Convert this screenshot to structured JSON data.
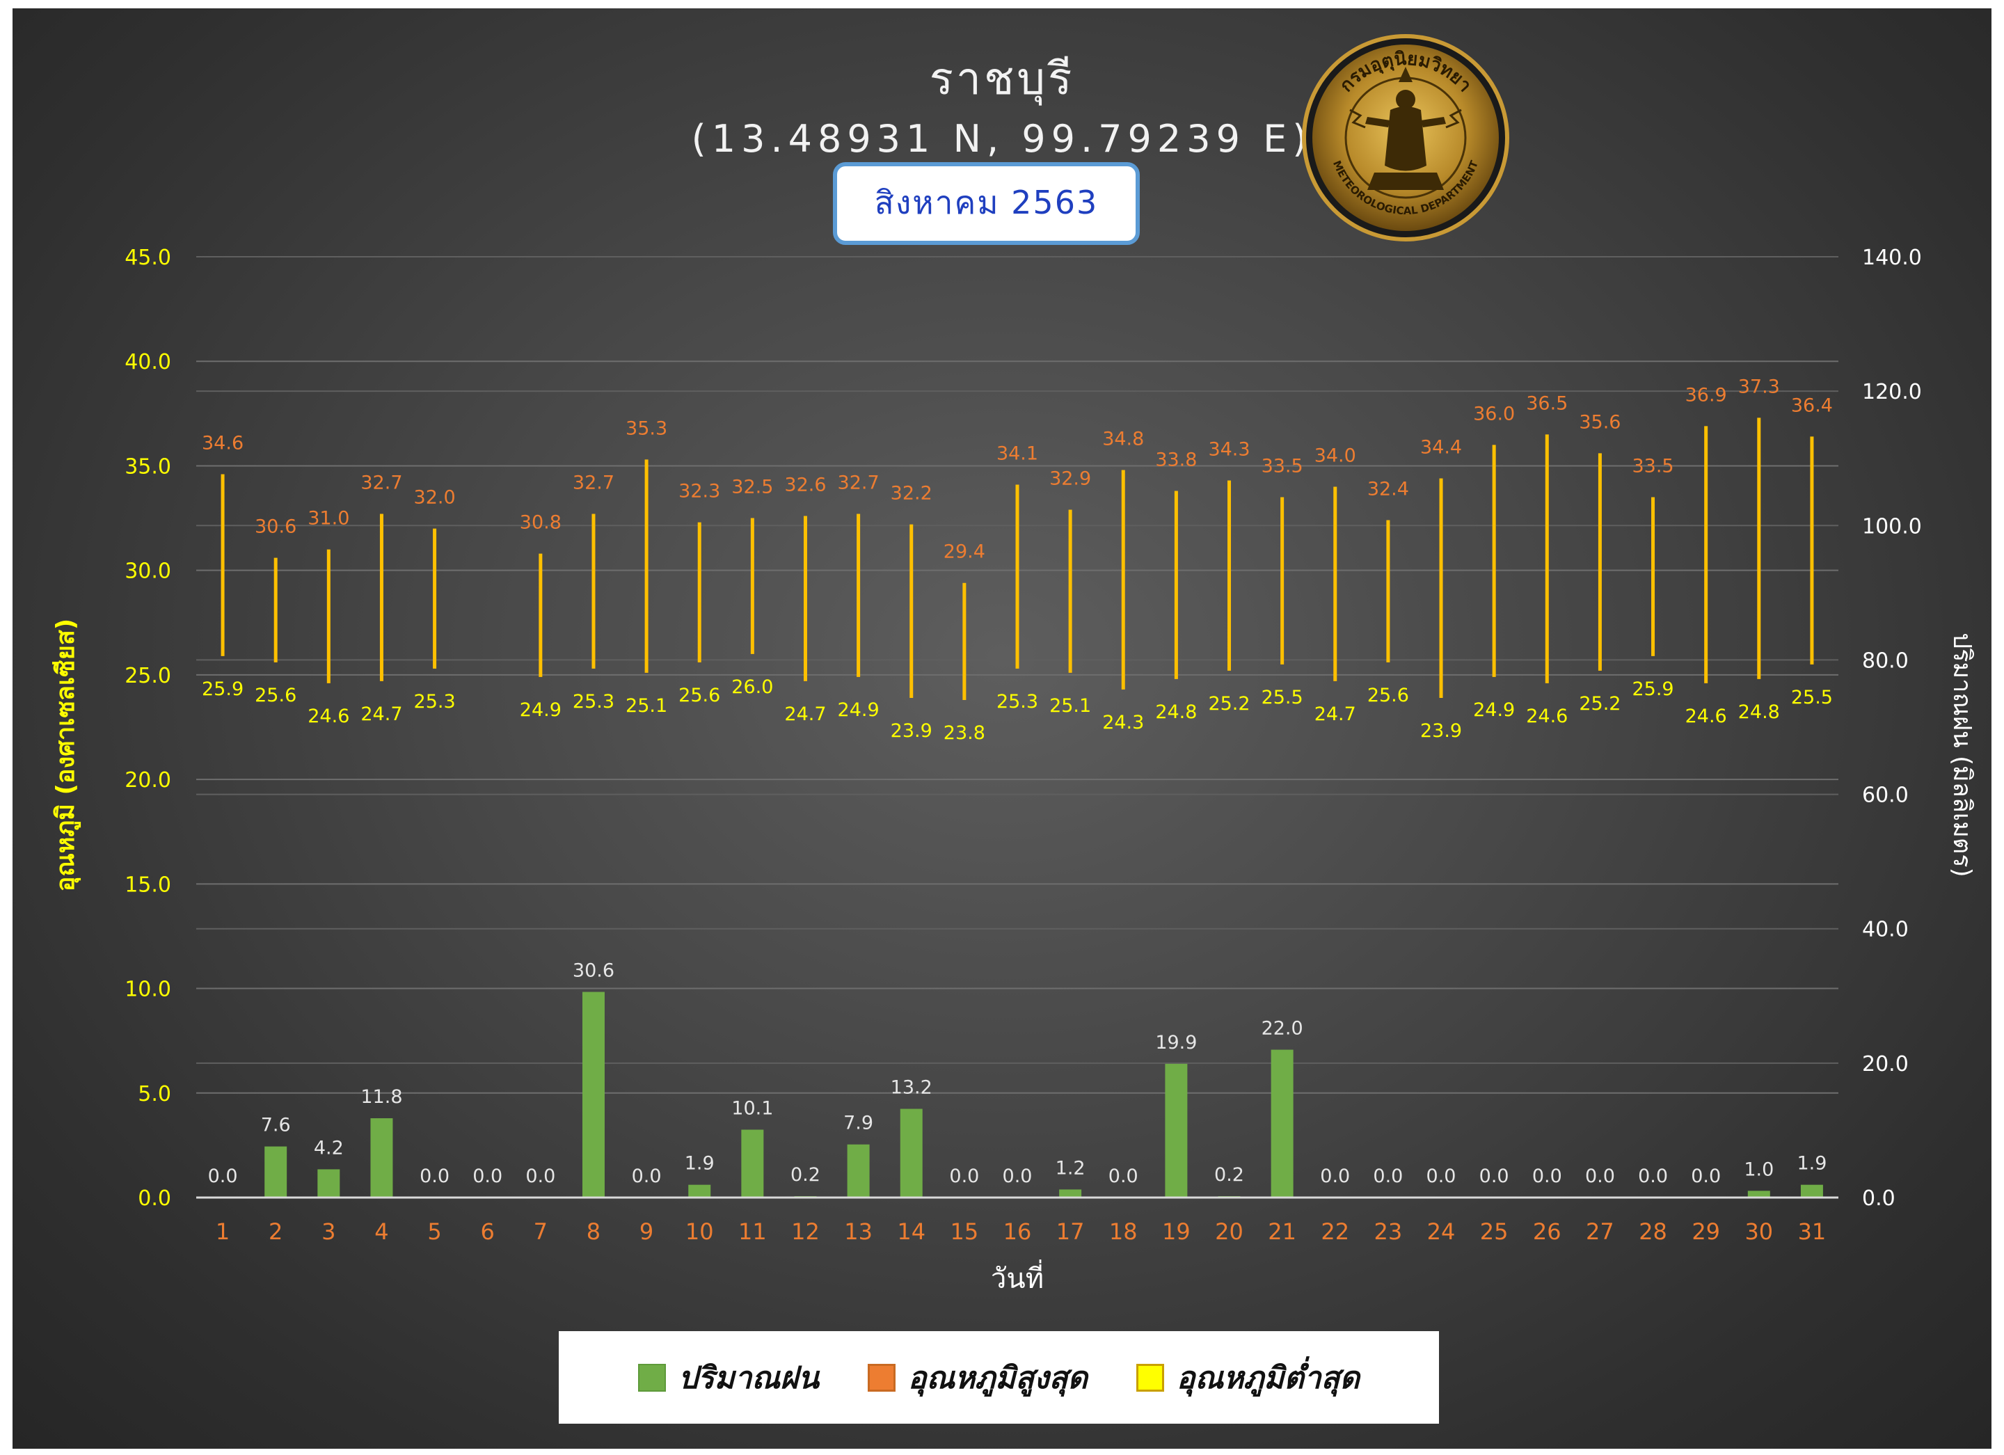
{
  "header": {
    "title": "ราชบุรี",
    "coords": "(13.48931 N, 99.79239 E)",
    "month": "สิงหาคม 2563"
  },
  "logo": {
    "text_top": "กรมอุตุนิยมวิทยา",
    "text_bottom": "METEOROLOGICAL DEPARTMENT",
    "icon": "thai-meteorological-department-seal"
  },
  "colors": {
    "rain": "#70ad47",
    "max_temp": "#ed7d31",
    "min_temp": "#ffff00",
    "range_line": "#ffc000",
    "left_axis": "#ffff00",
    "right_axis": "#ffffff",
    "x_labels": "#ed7d31"
  },
  "chart_data": {
    "type": "bar",
    "xlabel": "วันที่",
    "ylabel_left": "อุณหภูมิ (องศาเซลเซียส)",
    "ylabel_right": "ปริมาณฝน (มิลลิเมตร)",
    "ylim_left": [
      0,
      45
    ],
    "ylim_right": [
      0,
      140
    ],
    "yticks_left": [
      "0.0",
      "5.0",
      "10.0",
      "15.0",
      "20.0",
      "25.0",
      "30.0",
      "35.0",
      "40.0",
      "45.0"
    ],
    "yticks_right": [
      "0.0",
      "20.0",
      "40.0",
      "60.0",
      "80.0",
      "100.0",
      "120.0",
      "140.0"
    ],
    "categories": [
      "1",
      "2",
      "3",
      "4",
      "5",
      "6",
      "7",
      "8",
      "9",
      "10",
      "11",
      "12",
      "13",
      "14",
      "15",
      "16",
      "17",
      "18",
      "19",
      "20",
      "21",
      "22",
      "23",
      "24",
      "25",
      "26",
      "27",
      "28",
      "29",
      "30",
      "31"
    ],
    "series": [
      {
        "name": "ปริมาณฝน",
        "type": "bar",
        "axis": "right",
        "values": [
          0.0,
          7.6,
          4.2,
          11.8,
          0.0,
          0.0,
          0.0,
          30.6,
          0.0,
          1.9,
          10.1,
          0.2,
          7.9,
          13.2,
          0.0,
          0.0,
          1.2,
          0.0,
          19.9,
          0.2,
          22.0,
          0.0,
          0.0,
          0.0,
          0.0,
          0.0,
          0.0,
          0.0,
          0.0,
          1.0,
          1.9
        ],
        "labels": [
          "0.0",
          "7.6",
          "4.2",
          "11.8",
          "0.0",
          "0.0",
          "0.0",
          "30.6",
          "0.0",
          "1.9",
          "10.1",
          "0.2",
          "7.9",
          "13.2",
          "0.0",
          "0.0",
          "1.2",
          "0.0",
          "19.9",
          "0.2",
          "22.0",
          "0.0",
          "0.0",
          "0.0",
          "0.0",
          "0.0",
          "0.0",
          "0.0",
          "0.0",
          "1.0",
          "1.9"
        ]
      },
      {
        "name": "อุณหภูมิสูงสุด",
        "type": "range-high",
        "axis": "left",
        "values": [
          34.6,
          30.6,
          31.0,
          32.7,
          32.0,
          null,
          30.8,
          32.7,
          35.3,
          32.3,
          32.5,
          32.6,
          32.7,
          32.2,
          29.4,
          34.1,
          32.9,
          34.8,
          33.8,
          34.3,
          33.5,
          34.0,
          32.4,
          34.4,
          36.0,
          36.5,
          35.6,
          33.5,
          36.9,
          37.3,
          36.4
        ],
        "labels": [
          "34.6",
          "30.6",
          "31.0",
          "32.7",
          "32.0",
          "",
          "30.8",
          "32.7",
          "35.3",
          "32.3",
          "32.5",
          "32.6",
          "32.7",
          "32.2",
          "29.4",
          "34.1",
          "32.9",
          "34.8",
          "33.8",
          "34.3",
          "33.5",
          "34.0",
          "32.4",
          "34.4",
          "36.0",
          "36.5",
          "35.6",
          "33.5",
          "36.9",
          "37.3",
          "36.4"
        ]
      },
      {
        "name": "อุณหภูมิต่ำสุด",
        "type": "range-low",
        "axis": "left",
        "values": [
          25.9,
          25.6,
          24.6,
          24.7,
          25.3,
          null,
          24.9,
          25.3,
          25.1,
          25.6,
          26.0,
          24.7,
          24.9,
          23.9,
          23.8,
          25.3,
          25.1,
          24.3,
          24.8,
          25.2,
          25.5,
          24.7,
          25.6,
          23.9,
          24.9,
          24.6,
          25.2,
          25.9,
          24.6,
          24.8,
          25.5
        ],
        "labels": [
          "25.9",
          "25.6",
          "24.6",
          "24.7",
          "25.3",
          "",
          "24.9",
          "25.3",
          "25.1",
          "25.6",
          "26.0",
          "24.7",
          "24.9",
          "23.9",
          "23.8",
          "25.3",
          "25.1",
          "24.3",
          "24.8",
          "25.2",
          "25.5",
          "24.7",
          "25.6",
          "23.9",
          "24.9",
          "24.6",
          "25.2",
          "25.9",
          "24.6",
          "24.8",
          "25.5"
        ]
      }
    ],
    "grid": true,
    "legend_position": "bottom"
  },
  "legend": {
    "rain": "ปริมาณฝน",
    "max": "อุณหภูมิสูงสุด",
    "min": "อุณหภูมิต่ำสุด"
  }
}
